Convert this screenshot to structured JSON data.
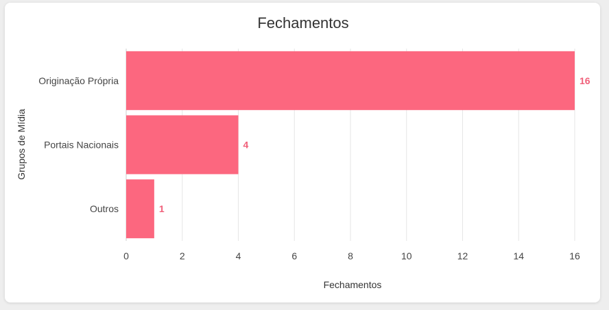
{
  "chart_data": {
    "type": "bar",
    "orientation": "horizontal",
    "title": "Fechamentos",
    "xlabel": "Fechamentos",
    "ylabel": "Grupos de Mídia",
    "categories": [
      "Originação Própria",
      "Portais Nacionais",
      "Outros"
    ],
    "values": [
      16,
      4,
      1
    ],
    "data_labels": [
      "16",
      "4",
      "1"
    ],
    "xlim": [
      0,
      16
    ],
    "x_ticks": [
      "0",
      "2",
      "4",
      "6",
      "8",
      "10",
      "12",
      "14",
      "16"
    ],
    "grid": "vertical",
    "legend": "none",
    "colors": {
      "bar": "#fc677f",
      "data_label": "#f0607a",
      "grid": "#e6e6e6"
    }
  }
}
